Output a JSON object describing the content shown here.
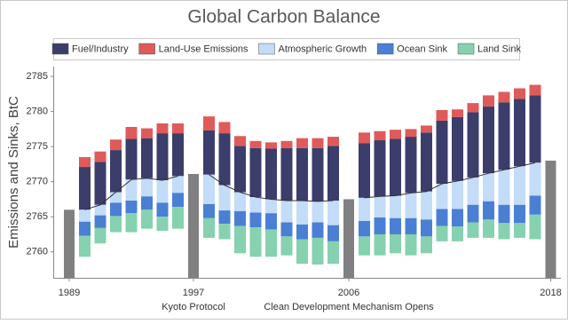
{
  "chart_data": {
    "type": "bar",
    "title": "Global Carbon Balance",
    "y_label": "Emissions and Sinks, BtC",
    "categories": [
      "1989",
      null,
      null,
      null,
      null,
      null,
      null,
      null,
      "1997",
      null,
      null,
      null,
      null,
      null,
      null,
      null,
      null,
      null,
      "2006",
      null,
      null,
      null,
      null,
      null,
      null,
      null,
      null,
      null,
      null,
      null,
      null,
      "2018"
    ],
    "series": [
      {
        "name": "Fuel/Industry",
        "color": "#3b3d6b",
        "stack": "up",
        "values": [
          null,
          6.1,
          6.1,
          6.0,
          5.8,
          5.7,
          6.7,
          6.1,
          null,
          6.3,
          7.4,
          6.6,
          7.0,
          7.2,
          7.5,
          7.5,
          7.6,
          7.8,
          null,
          7.8,
          8.0,
          8.1,
          8.0,
          8.4,
          9.0,
          9.1,
          9.3,
          9.5,
          9.6,
          9.6,
          9.6,
          null
        ]
      },
      {
        "name": "Land-Use Emissions",
        "color": "#e05a5a",
        "stack": "up",
        "values": [
          null,
          1.4,
          1.5,
          1.5,
          1.7,
          1.4,
          1.4,
          1.4,
          null,
          2.0,
          1.6,
          1.4,
          1.0,
          0.9,
          1.0,
          1.4,
          1.4,
          1.3,
          null,
          1.5,
          1.3,
          1.3,
          1.1,
          1.0,
          1.5,
          1.1,
          1.3,
          1.6,
          1.5,
          1.5,
          1.5,
          null
        ]
      },
      {
        "name": "Atmospheric Growth",
        "color": "#c3dcf7",
        "stack": "down",
        "values": [
          null,
          1.7,
          1.5,
          1.5,
          3.0,
          2.6,
          3.2,
          2.4,
          null,
          4.2,
          3.6,
          2.7,
          2.2,
          2.0,
          3.1,
          3.4,
          3.0,
          3.5,
          null,
          3.3,
          3.0,
          3.2,
          3.6,
          4.0,
          3.6,
          4.0,
          3.9,
          4.0,
          5.0,
          5.5,
          4.7,
          null
        ]
      },
      {
        "name": "Ocean Sink",
        "color": "#4a7fd4",
        "stack": "down",
        "values": [
          null,
          2.0,
          1.8,
          1.9,
          1.8,
          1.9,
          2.0,
          2.0,
          null,
          2.0,
          1.9,
          2.1,
          2.1,
          2.3,
          2.0,
          2.1,
          2.2,
          2.3,
          null,
          2.2,
          2.4,
          2.3,
          2.3,
          2.4,
          2.4,
          2.5,
          2.5,
          2.6,
          2.6,
          2.6,
          2.7,
          null
        ]
      },
      {
        "name": "Land Sink",
        "color": "#86d1b0",
        "stack": "down",
        "values": [
          null,
          3.0,
          2.2,
          2.3,
          2.7,
          2.7,
          2.0,
          3.1,
          null,
          2.8,
          2.2,
          3.9,
          4.2,
          3.9,
          2.7,
          3.5,
          3.8,
          3.2,
          null,
          2.7,
          3.0,
          2.7,
          3.0,
          2.4,
          2.2,
          2.1,
          2.2,
          2.6,
          2.3,
          2.1,
          3.5,
          null
        ]
      }
    ],
    "balance_line": {
      "color": "#333333",
      "values": [
        null,
        2766.0,
        2766.7,
        2768.5,
        2770.3,
        2770.5,
        2770.2,
        2770.8,
        null,
        2771.0,
        2769.5,
        2768.5,
        2767.8,
        2767.5,
        2767.3,
        2767.3,
        2767.2,
        2767.3,
        null,
        2767.7,
        2767.9,
        2768.0,
        2768.4,
        2768.6,
        2769.7,
        2770.1,
        2770.6,
        2771.2,
        2771.7,
        2772.2,
        2772.7,
        null
      ]
    },
    "totals": {
      "color": "#808080",
      "values": [
        2766.0,
        null,
        null,
        null,
        null,
        null,
        null,
        null,
        2771.1,
        null,
        null,
        null,
        null,
        null,
        null,
        null,
        null,
        null,
        2767.5,
        null,
        null,
        null,
        null,
        null,
        null,
        null,
        null,
        null,
        null,
        null,
        null,
        2773.0
      ]
    },
    "annotations": [
      {
        "text": "Kyoto Protocol",
        "at": "1997"
      },
      {
        "text": "Clean Development Mechanism Opens",
        "at": "2006"
      }
    ],
    "ylim": [
      2756.3,
      2786.4
    ],
    "yticks": [
      2760,
      2765,
      2770,
      2775,
      2780,
      2785
    ],
    "grid": false
  }
}
